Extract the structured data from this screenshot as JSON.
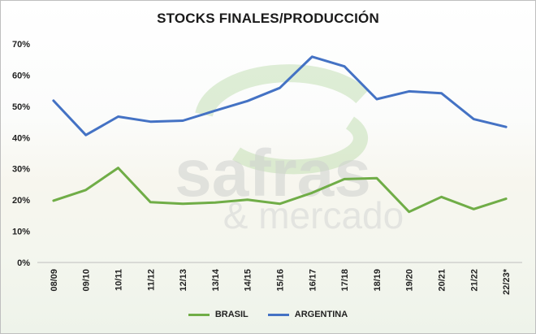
{
  "chart_data": {
    "type": "line",
    "title": "STOCKS FINALES/PRODUCCIÓN",
    "categories": [
      "08/09",
      "09/10",
      "10/11",
      "11/12",
      "12/13",
      "13/14",
      "14/15",
      "15/16",
      "16/17",
      "17/18",
      "18/19",
      "19/20",
      "20/21",
      "21/22",
      "22/23*"
    ],
    "series": [
      {
        "name": "BRASIL",
        "color": "#70ad47",
        "values": [
          19.8,
          23.2,
          30.3,
          19.3,
          18.8,
          19.2,
          20.1,
          18.8,
          22.3,
          26.7,
          27.0,
          16.2,
          21.0,
          17.1,
          20.4
        ]
      },
      {
        "name": "ARGENTINA",
        "color": "#4472c4",
        "values": [
          51.8,
          40.8,
          46.7,
          45.1,
          45.4,
          48.6,
          51.7,
          55.9,
          65.9,
          62.8,
          52.3,
          54.8,
          54.2,
          45.9,
          43.4
        ]
      }
    ],
    "yticks": [
      "0%",
      "10%",
      "20%",
      "30%",
      "40%",
      "50%",
      "60%",
      "70%"
    ],
    "ylim": [
      0,
      70
    ],
    "grid": false,
    "legend_position": "bottom",
    "watermark": {
      "brand_line1": "safras",
      "brand_line2": "& mercado"
    }
  }
}
